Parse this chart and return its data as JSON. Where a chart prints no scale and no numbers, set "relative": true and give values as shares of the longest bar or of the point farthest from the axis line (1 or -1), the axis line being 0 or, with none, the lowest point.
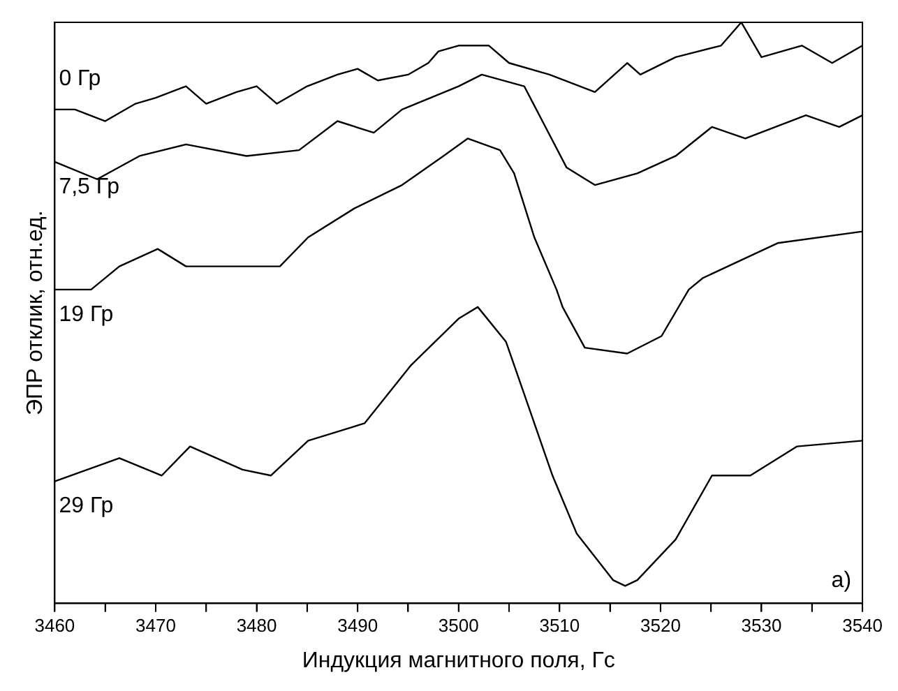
{
  "chart_data": {
    "type": "line",
    "relative": true,
    "xlabel": "Индукция магнитного поля, Гс",
    "ylabel": "ЭПР отклик, отн.ед.",
    "xlim": [
      3460,
      3540
    ],
    "xticks": [
      3460,
      {
        "value": 3465,
        "label": null
      },
      3470,
      {
        "value": 3475,
        "label": null
      },
      3480,
      {
        "value": 3485,
        "label": null
      },
      3490,
      {
        "value": 3495,
        "label": null
      },
      3500,
      {
        "value": 3505,
        "label": null
      },
      3510,
      {
        "value": 3515,
        "label": null
      },
      3520,
      {
        "value": 3525,
        "label": null
      },
      3530,
      {
        "value": 3535,
        "label": null
      },
      3540
    ],
    "grid": false,
    "legend": false,
    "annotations": [
      "a)"
    ],
    "series": [
      {
        "name": "0 Гр",
        "color": "#000000",
        "x": [
          3460,
          3462,
          3465,
          3468,
          3470,
          3473,
          3475,
          3478,
          3480,
          3482,
          3485,
          3488,
          3490,
          3492,
          3495,
          3497,
          3498,
          3500,
          3503,
          3505,
          3509,
          3513.5,
          3516.7,
          3518,
          3521.5,
          3526,
          3528,
          3530,
          3534,
          3537,
          3540
        ],
        "values": [
          0.85,
          0.85,
          0.83,
          0.86,
          0.87,
          0.89,
          0.86,
          0.88,
          0.89,
          0.86,
          0.89,
          0.91,
          0.92,
          0.9,
          0.91,
          0.93,
          0.95,
          0.96,
          0.96,
          0.93,
          0.91,
          0.88,
          0.93,
          0.91,
          0.94,
          0.96,
          1.0,
          0.94,
          0.96,
          0.93,
          0.96
        ]
      },
      {
        "name": "7,5 Гр",
        "color": "#000000",
        "x": [
          3460,
          3464.2,
          3468.4,
          3473,
          3479,
          3484.2,
          3488,
          3491.6,
          3494.4,
          3500,
          3502.3,
          3506.5,
          3508.3,
          3510.7,
          3513.5,
          3517.7,
          3521.5,
          3525.1,
          3528.4,
          3534.4,
          3537.7,
          3540
        ],
        "values": [
          0.76,
          0.73,
          0.77,
          0.79,
          0.77,
          0.78,
          0.83,
          0.81,
          0.85,
          0.89,
          0.91,
          0.89,
          0.83,
          0.75,
          0.72,
          0.74,
          0.77,
          0.82,
          0.8,
          0.84,
          0.82,
          0.84
        ]
      },
      {
        "name": "19 Гр",
        "color": "#000000",
        "x": [
          3460,
          3463.6,
          3466.4,
          3470.2,
          3473,
          3476.8,
          3482.3,
          3485.1,
          3489.7,
          3494.4,
          3498.5,
          3500.9,
          3504.1,
          3505.5,
          3507.5,
          3509.7,
          3510.3,
          3512.5,
          3516.7,
          3520.1,
          3522.8,
          3524.2,
          3531.6,
          3540
        ],
        "values": [
          0.54,
          0.54,
          0.58,
          0.61,
          0.58,
          0.58,
          0.58,
          0.63,
          0.68,
          0.72,
          0.77,
          0.8,
          0.78,
          0.74,
          0.63,
          0.54,
          0.51,
          0.44,
          0.43,
          0.46,
          0.54,
          0.56,
          0.62,
          0.64
        ]
      },
      {
        "name": "29 Гр",
        "color": "#000000",
        "x": [
          3460,
          3466.4,
          3470.6,
          3473.4,
          3478.6,
          3481.4,
          3485.1,
          3490.7,
          3495.3,
          3500,
          3501.9,
          3504.7,
          3507.5,
          3509.3,
          3511.7,
          3515.3,
          3516.5,
          3517.7,
          3521.5,
          3525.1,
          3528.9,
          3533.5,
          3540
        ],
        "values": [
          0.21,
          0.25,
          0.22,
          0.27,
          0.23,
          0.22,
          0.28,
          0.31,
          0.41,
          0.49,
          0.51,
          0.45,
          0.31,
          0.22,
          0.12,
          0.04,
          0.03,
          0.04,
          0.11,
          0.22,
          0.22,
          0.27,
          0.28
        ]
      }
    ]
  }
}
